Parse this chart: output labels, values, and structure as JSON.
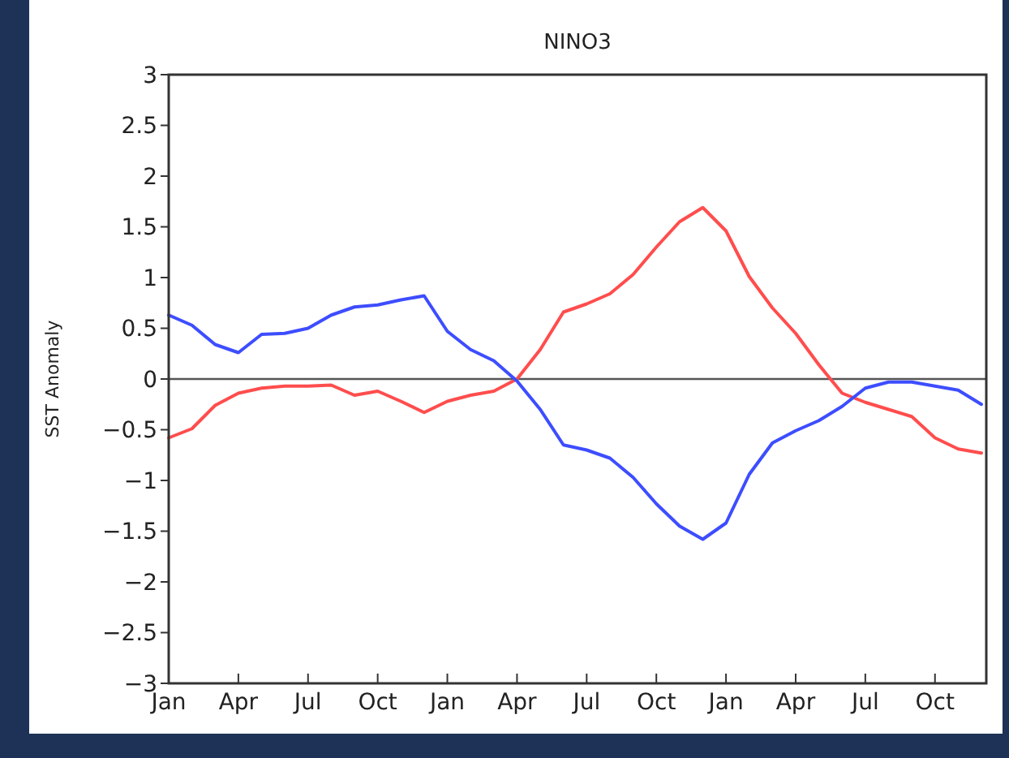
{
  "chart_data": {
    "type": "line",
    "title": "NINO3",
    "ylabel": "SST Anomaly",
    "categories": [
      "Jan",
      null,
      null,
      "Apr",
      null,
      null,
      "Jul",
      null,
      null,
      "Oct",
      null,
      null,
      "Jan",
      null,
      null,
      "Apr",
      null,
      null,
      "Jul",
      null,
      null,
      "Oct",
      null,
      null,
      "Jan",
      null,
      null,
      "Apr",
      null,
      null,
      "Jul",
      null,
      null,
      "Oct",
      null,
      null
    ],
    "series": [
      {
        "color": "#ff4d4d",
        "values": [
          -0.58,
          -0.49,
          -0.26,
          -0.14,
          -0.09,
          -0.07,
          -0.07,
          -0.06,
          -0.16,
          -0.12,
          -0.22,
          -0.33,
          -0.22,
          -0.16,
          -0.12,
          0,
          0.29,
          0.66,
          0.74,
          0.84,
          1.03,
          1.3,
          1.55,
          1.69,
          1.46,
          1.01,
          0.7,
          0.45,
          0.14,
          -0.14,
          -0.23,
          -0.3,
          -0.37,
          -0.58,
          -0.69,
          -0.73
        ]
      },
      {
        "color": "#3d4dff",
        "values": [
          0.63,
          0.53,
          0.34,
          0.26,
          0.44,
          0.45,
          0.5,
          0.63,
          0.71,
          0.73,
          0.78,
          0.82,
          0.47,
          0.29,
          0.18,
          -0.02,
          -0.3,
          -0.65,
          -0.7,
          -0.78,
          -0.97,
          -1.23,
          -1.45,
          -1.58,
          -1.42,
          -0.94,
          -0.63,
          -0.51,
          -0.41,
          -0.27,
          -0.09,
          -0.03,
          -0.03,
          -0.07,
          -0.11,
          -0.25
        ]
      }
    ],
    "ylim": [
      -3,
      3
    ],
    "yticks": [
      3,
      2.5,
      2,
      1.5,
      1,
      0.5,
      0,
      -0.5,
      -1,
      -1.5,
      -2,
      -2.5,
      -3
    ],
    "ref_lines": [
      {
        "axis": "y",
        "value": 0,
        "color": "#555555"
      }
    ],
    "grid": false,
    "marker": "none",
    "line_style": "solid"
  }
}
